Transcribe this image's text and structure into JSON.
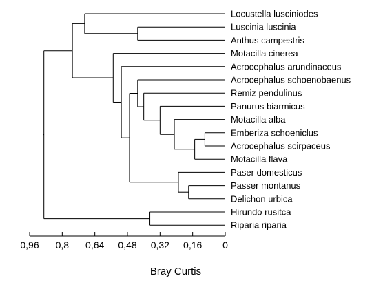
{
  "chart_data": {
    "type": "dendrogram",
    "orientation": "leaves-right",
    "xlabel": "Bray Curtis",
    "x_axis": {
      "range": [
        0.96,
        0
      ],
      "reversed": true,
      "ticks": [
        0.96,
        0.8,
        0.64,
        0.48,
        0.32,
        0.16,
        0
      ],
      "tick_labels": [
        "0,96",
        "0,8",
        "0,64",
        "0,48",
        "0,32",
        "0,16",
        "0"
      ]
    },
    "grid": false,
    "leaves": [
      "Locustella lusciniodes",
      "Luscinia luscinia",
      "Anthus campestris",
      "Motacilla cinerea",
      "Acrocephalus arundinaceus",
      "Acrocephalus schoenobaenus",
      "Remiz pendulinus",
      "Panurus biarmicus",
      "Motacilla alba",
      "Emberiza schoeniclus",
      "Acrocephalus scirpaceus",
      "Motacilla flava",
      "Paser domesticus",
      "Passer montanus",
      "Delichon urbica",
      "Hirundo rusitca",
      "Riparia riparia"
    ],
    "merges": [
      {
        "id": "n1",
        "children": [
          "Emberiza schoeniclus",
          "Acrocephalus scirpaceus"
        ],
        "height": 0.1
      },
      {
        "id": "n2",
        "children": [
          "n1",
          "Motacilla flava"
        ],
        "height": 0.15
      },
      {
        "id": "n3",
        "children": [
          "Motacilla alba",
          "n2"
        ],
        "height": 0.25
      },
      {
        "id": "n4",
        "children": [
          "Panurus biarmicus",
          "n3"
        ],
        "height": 0.32
      },
      {
        "id": "n5",
        "children": [
          "Remiz pendulinus",
          "n4"
        ],
        "height": 0.4
      },
      {
        "id": "n6",
        "children": [
          "Acrocephalus schoenobaenus",
          "n5"
        ],
        "height": 0.43
      },
      {
        "id": "n7",
        "children": [
          "Passer montanus",
          "Delichon urbica"
        ],
        "height": 0.18
      },
      {
        "id": "n8",
        "children": [
          "Paser domesticus",
          "n7"
        ],
        "height": 0.23
      },
      {
        "id": "n9",
        "children": [
          "n6",
          "n8"
        ],
        "height": 0.47
      },
      {
        "id": "n10",
        "children": [
          "Acrocephalus arundinaceus",
          "n9"
        ],
        "height": 0.51
      },
      {
        "id": "n11",
        "children": [
          "Motacilla cinerea",
          "n10"
        ],
        "height": 0.55
      },
      {
        "id": "n12",
        "children": [
          "Luscinia luscinia",
          "Anthus campestris"
        ],
        "height": 0.43
      },
      {
        "id": "n13",
        "children": [
          "Locustella lusciniodes",
          "n12"
        ],
        "height": 0.69
      },
      {
        "id": "n14",
        "children": [
          "n13",
          "n11"
        ],
        "height": 0.75
      },
      {
        "id": "n15",
        "children": [
          "Hirundo rusitca",
          "Riparia riparia"
        ],
        "height": 0.37
      },
      {
        "id": "n16",
        "children": [
          "n14",
          "n15"
        ],
        "height": 0.89
      }
    ]
  }
}
